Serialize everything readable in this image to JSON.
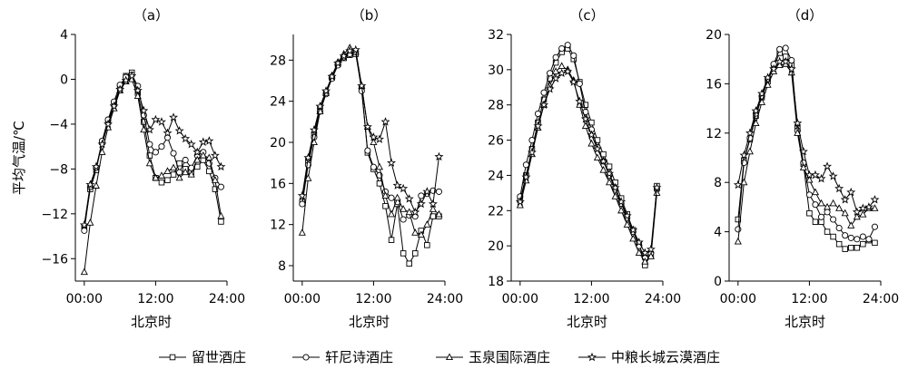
{
  "ylabel": "平均气温/℃",
  "legend": [
    "留世酒庄",
    "轩尼诗酒庄",
    "玉泉国际酒庄",
    "中粮长城云漠酒庄"
  ],
  "chart_data": [
    {
      "type": "line",
      "title": "（a）",
      "xlabel": "北京时",
      "ylabel": "平均气温/℃",
      "x": [
        0,
        1,
        2,
        3,
        4,
        5,
        6,
        7,
        8,
        9,
        10,
        11,
        12,
        13,
        14,
        15,
        16,
        17,
        18,
        19,
        20,
        21,
        22,
        23
      ],
      "xticks": [
        "00:00",
        "12:00",
        "24:00"
      ],
      "xtick_values": [
        0,
        12,
        24
      ],
      "xlim": [
        -1.5,
        24
      ],
      "ylim": [
        -18,
        4
      ],
      "yticks": [
        -16,
        -12,
        -8,
        -4,
        0,
        4
      ],
      "series": [
        {
          "name": "留世酒庄",
          "marker": "square",
          "values": [
            -13.2,
            -9.8,
            -8.1,
            -5.6,
            -3.8,
            -2.2,
            -0.8,
            0.3,
            0.6,
            -1.2,
            -3.8,
            -6.8,
            -8.8,
            -9.2,
            -9.0,
            -8.5,
            -7.5,
            -8.0,
            -8.3,
            -7.8,
            -7.2,
            -8.2,
            -9.8,
            -12.7
          ]
        },
        {
          "name": "轩尼诗酒庄",
          "marker": "circle",
          "values": [
            -13.5,
            -9.6,
            -7.9,
            -5.5,
            -3.6,
            -2.0,
            -0.5,
            0.2,
            0.4,
            -0.6,
            -3.2,
            -5.8,
            -6.5,
            -6.0,
            -5.2,
            -6.6,
            -8.3,
            -7.2,
            -7.9,
            -6.8,
            -6.5,
            -7.5,
            -8.8,
            -9.6
          ]
        },
        {
          "name": "玉泉国际酒庄",
          "marker": "triangle",
          "values": [
            -17.2,
            -12.8,
            -9.5,
            -6.5,
            -4.3,
            -2.6,
            -1.0,
            -0.2,
            0.0,
            -1.5,
            -4.5,
            -7.5,
            -8.8,
            -8.6,
            -8.2,
            -7.9,
            -8.8,
            -8.3,
            -8.5,
            -7.2,
            -6.8,
            -7.0,
            -9.0,
            -12.2
          ]
        },
        {
          "name": "中粮长城云漠酒庄",
          "marker": "star",
          "values": [
            -13.0,
            -9.4,
            -7.8,
            -5.8,
            -4.0,
            -2.4,
            -0.9,
            -0.1,
            0.3,
            -1.0,
            -2.8,
            -4.5,
            -3.6,
            -3.8,
            -4.8,
            -3.4,
            -4.6,
            -5.3,
            -5.8,
            -6.5,
            -5.6,
            -5.5,
            -6.8,
            -7.8
          ]
        }
      ]
    },
    {
      "type": "line",
      "title": "（b）",
      "xlabel": "北京时",
      "ylabel": "",
      "x": [
        0,
        1,
        2,
        3,
        4,
        5,
        6,
        7,
        8,
        9,
        10,
        11,
        12,
        13,
        14,
        15,
        16,
        17,
        18,
        19,
        20,
        21,
        22,
        23
      ],
      "xticks": [
        "00:00",
        "12:00",
        "24:00"
      ],
      "xtick_values": [
        0,
        12,
        24
      ],
      "xlim": [
        -1.5,
        24
      ],
      "ylim": [
        6.5,
        30.5
      ],
      "yticks": [
        8,
        12,
        16,
        20,
        24,
        28
      ],
      "series": [
        {
          "name": "留世酒庄",
          "marker": "square",
          "values": [
            14.2,
            18.2,
            20.8,
            23.3,
            24.8,
            26.3,
            27.6,
            28.2,
            28.5,
            28.6,
            25.3,
            19.0,
            17.4,
            16.0,
            13.8,
            10.5,
            14.0,
            9.2,
            8.2,
            9.2,
            11.4,
            10.0,
            12.8,
            12.8
          ]
        },
        {
          "name": "轩尼诗酒庄",
          "marker": "circle",
          "values": [
            14.0,
            17.8,
            20.5,
            23.0,
            24.7,
            26.2,
            27.5,
            28.3,
            28.6,
            28.8,
            25.0,
            19.2,
            17.6,
            16.8,
            15.2,
            14.6,
            14.2,
            12.5,
            12.9,
            12.8,
            14.8,
            15.0,
            15.3,
            15.2
          ]
        },
        {
          "name": "玉泉国际酒庄",
          "marker": "triangle",
          "values": [
            11.2,
            16.5,
            20.0,
            23.0,
            24.8,
            26.5,
            27.8,
            28.6,
            29.2,
            28.8,
            25.5,
            21.5,
            20.0,
            17.6,
            14.8,
            13.0,
            14.6,
            13.5,
            13.2,
            11.2,
            11.0,
            12.0,
            13.5,
            13.0
          ]
        },
        {
          "name": "中粮长城云漠酒庄",
          "marker": "star",
          "values": [
            14.8,
            18.5,
            21.2,
            23.5,
            25.0,
            26.4,
            27.7,
            28.4,
            28.9,
            29.0,
            25.5,
            21.5,
            20.5,
            20.3,
            22.0,
            18.0,
            15.8,
            15.5,
            14.5,
            13.2,
            14.0,
            15.2,
            14.0,
            18.6
          ]
        }
      ]
    },
    {
      "type": "line",
      "title": "（c）",
      "xlabel": "北京时",
      "ylabel": "",
      "x": [
        0,
        1,
        2,
        3,
        4,
        5,
        6,
        7,
        8,
        9,
        10,
        11,
        12,
        13,
        14,
        15,
        16,
        17,
        18,
        19,
        20,
        21,
        22,
        23
      ],
      "xticks": [
        "00:00",
        "12:00",
        "24:00"
      ],
      "xtick_values": [
        0,
        12,
        24
      ],
      "xlim": [
        -1.5,
        24
      ],
      "ylim": [
        18,
        32
      ],
      "yticks": [
        18,
        20,
        22,
        24,
        26,
        28,
        30,
        32
      ],
      "series": [
        {
          "name": "留世酒庄",
          "marker": "square",
          "values": [
            22.6,
            24.0,
            25.5,
            27.0,
            28.3,
            29.5,
            30.4,
            31.0,
            31.2,
            30.6,
            29.3,
            28.0,
            27.0,
            26.0,
            25.2,
            24.5,
            23.6,
            22.7,
            21.8,
            20.9,
            20.1,
            18.9,
            19.5,
            23.4
          ]
        },
        {
          "name": "轩尼诗酒庄",
          "marker": "circle",
          "values": [
            22.8,
            24.6,
            26.0,
            27.5,
            28.7,
            29.8,
            30.7,
            31.2,
            31.4,
            30.8,
            29.2,
            27.6,
            26.6,
            25.6,
            24.8,
            24.0,
            23.2,
            22.4,
            21.6,
            20.8,
            20.0,
            19.3,
            19.6,
            23.2
          ]
        },
        {
          "name": "玉泉国际酒庄",
          "marker": "triangle",
          "values": [
            22.3,
            23.7,
            25.2,
            26.7,
            28.0,
            29.1,
            29.9,
            30.2,
            30.0,
            29.4,
            28.0,
            26.8,
            25.8,
            25.0,
            24.3,
            23.6,
            22.8,
            22.0,
            21.2,
            20.4,
            19.6,
            19.1,
            19.4,
            23.0
          ]
        },
        {
          "name": "中粮长城云漠酒庄",
          "marker": "star",
          "values": [
            22.5,
            23.9,
            25.3,
            26.8,
            28.0,
            28.9,
            29.5,
            29.8,
            29.9,
            29.3,
            28.2,
            27.2,
            26.3,
            25.5,
            24.8,
            24.1,
            23.3,
            22.5,
            21.7,
            20.9,
            20.2,
            19.6,
            19.8,
            23.3
          ]
        }
      ]
    },
    {
      "type": "line",
      "title": "（d）",
      "xlabel": "北京时",
      "ylabel": "",
      "x": [
        0,
        1,
        2,
        3,
        4,
        5,
        6,
        7,
        8,
        9,
        10,
        11,
        12,
        13,
        14,
        15,
        16,
        17,
        18,
        19,
        20,
        21,
        22,
        23
      ],
      "xticks": [
        "00:00",
        "12:00",
        "24:00"
      ],
      "xtick_values": [
        0,
        12,
        24
      ],
      "xlim": [
        -1.5,
        24
      ],
      "ylim": [
        0,
        20
      ],
      "yticks": [
        0,
        4,
        8,
        12,
        16,
        20
      ],
      "series": [
        {
          "name": "留世酒庄",
          "marker": "square",
          "values": [
            5.0,
            9.8,
            11.5,
            13.4,
            14.9,
            16.2,
            17.4,
            18.5,
            18.2,
            17.5,
            12.5,
            9.5,
            5.5,
            4.8,
            4.8,
            4.0,
            3.6,
            3.0,
            2.6,
            2.7,
            2.7,
            3.0,
            3.3,
            3.1
          ]
        },
        {
          "name": "轩尼诗酒庄",
          "marker": "circle",
          "values": [
            4.2,
            9.6,
            11.6,
            13.6,
            15.0,
            16.4,
            17.6,
            18.8,
            18.9,
            17.9,
            12.2,
            9.6,
            7.0,
            6.2,
            5.2,
            5.6,
            5.0,
            4.3,
            3.7,
            3.5,
            3.4,
            3.6,
            3.4,
            4.4
          ]
        },
        {
          "name": "玉泉国际酒庄",
          "marker": "triangle",
          "values": [
            3.2,
            8.0,
            10.5,
            12.8,
            14.5,
            15.9,
            17.0,
            17.5,
            17.6,
            16.9,
            12.0,
            9.2,
            8.2,
            7.2,
            6.3,
            6.0,
            6.3,
            5.9,
            5.5,
            4.5,
            5.2,
            5.4,
            5.9,
            5.9
          ]
        },
        {
          "name": "中粮长城云漠酒庄",
          "marker": "star",
          "values": [
            7.8,
            10.2,
            12.0,
            13.8,
            15.2,
            16.5,
            17.2,
            17.8,
            17.8,
            17.2,
            12.8,
            10.5,
            8.6,
            8.6,
            8.3,
            9.3,
            8.5,
            7.5,
            6.6,
            7.2,
            5.6,
            5.9,
            6.0,
            6.6
          ]
        }
      ]
    }
  ]
}
